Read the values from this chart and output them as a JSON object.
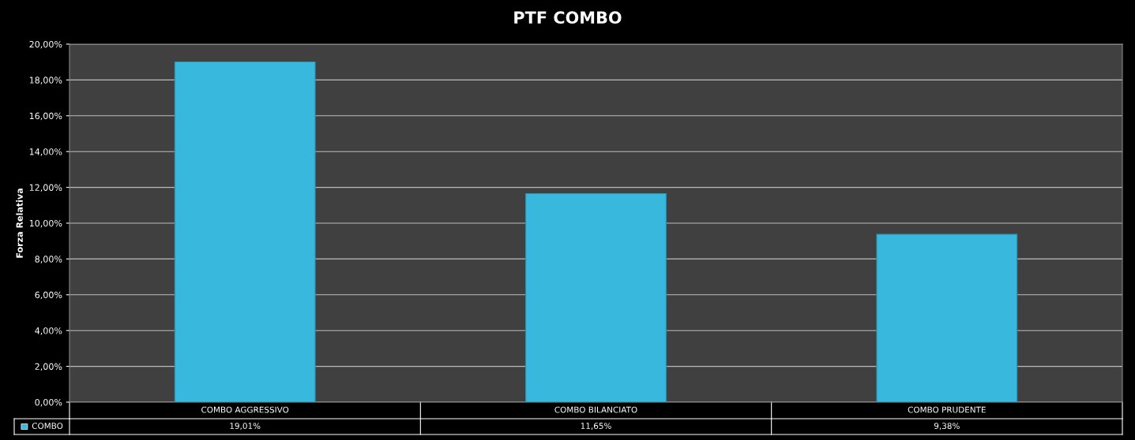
{
  "chart_data": {
    "type": "bar",
    "title": "PTF COMBO",
    "ylabel": "Forza Relativa",
    "categories": [
      "COMBO AGGRESSIVO",
      "COMBO BILANCIATO",
      "COMBO PRUDENTE"
    ],
    "series": [
      {
        "name": "COMBO",
        "color": "#38b8dc",
        "values": [
          19.01,
          11.65,
          9.38
        ],
        "value_labels": [
          "19,01%",
          "11,65%",
          "9,38%"
        ]
      }
    ],
    "ylim": [
      0,
      20
    ],
    "yticks": [
      {
        "value": 0,
        "label": "0,00%"
      },
      {
        "value": 2,
        "label": "2,00%"
      },
      {
        "value": 4,
        "label": "4,00%"
      },
      {
        "value": 6,
        "label": "6,00%"
      },
      {
        "value": 8,
        "label": "8,00%"
      },
      {
        "value": 10,
        "label": "10,00%"
      },
      {
        "value": 12,
        "label": "12,00%"
      },
      {
        "value": 14,
        "label": "14,00%"
      },
      {
        "value": 16,
        "label": "16,00%"
      },
      {
        "value": 18,
        "label": "18,00%"
      },
      {
        "value": 20,
        "label": "20,00%"
      }
    ],
    "grid": "y",
    "legend": "bottom"
  }
}
